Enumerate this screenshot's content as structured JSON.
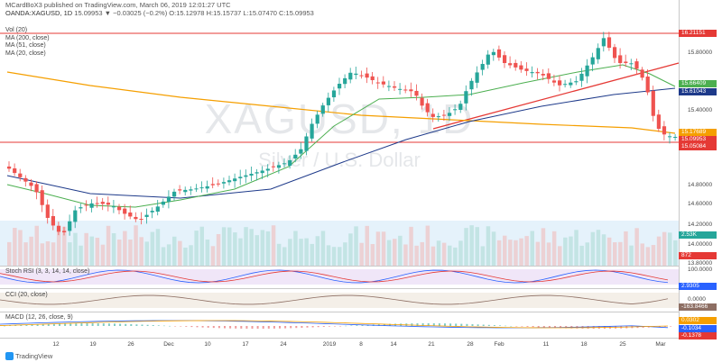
{
  "header": {
    "line1": "MCardBoX3 published on TradingView.com, March 06, 2019 12:01:27 UTC",
    "symbol": "OANDA:XAGUSD, 1D",
    "ohlc": "15.09953 ▼ −0.03025 (−0.2%) O:15.12978 H:15.15737 L:15.07470 C:15.09953"
  },
  "indicators": {
    "vol": "Vol (20)",
    "ma200": "MA (200, close)",
    "ma51": "MA (51, close)",
    "ma20": "MA (20, close)",
    "stoch": "Stoch RSI (3, 3, 14, 14, close)",
    "cci": "CCI (20, close)",
    "macd": "MACD (12, 26, close, 9)"
  },
  "watermark": {
    "symbol": "XAGUSD, 1D",
    "name": "Silver / U.S. Dollar"
  },
  "price_axis": [
    "15.80000",
    "15.40000",
    "14.80000",
    "14.60000",
    "14.20000",
    "14.00000",
    "13.80000"
  ],
  "stoch_axis": [
    "100.0000"
  ],
  "cci_axis": [
    "0.0000"
  ],
  "price_labels": [
    {
      "text": "16.21151",
      "color": "#e53935"
    },
    {
      "text": "15.66409",
      "color": "#4caf50"
    },
    {
      "text": "15.61043",
      "color": "#1e3a8a"
    },
    {
      "text": "15.17689",
      "color": "#f59f00"
    },
    {
      "text": "15.09953",
      "color": "#e53935"
    },
    {
      "text": "15.05084",
      "color": "#e53935"
    },
    {
      "text": "2.53K",
      "color": "#26a69a"
    },
    {
      "text": "872",
      "color": "#e53935"
    }
  ],
  "osc_labels": [
    {
      "text": "2.9305",
      "color": "#2962ff"
    },
    {
      "text": "-163.8466",
      "color": "#8d6e63"
    },
    {
      "text": "0.0302",
      "color": "#f59f00"
    },
    {
      "text": "-0.1034",
      "color": "#2962ff"
    },
    {
      "text": "-0.1378",
      "color": "#e53935"
    }
  ],
  "time_axis": [
    "12",
    "19",
    "26",
    "Dec",
    "10",
    "17",
    "24",
    "2019",
    "8",
    "14",
    "21",
    "28",
    "Feb",
    "11",
    "18",
    "25",
    "Mar"
  ],
  "footer": "TradingView",
  "colors": {
    "up": "#26a69a",
    "down": "#ef5350",
    "ma200": "#f59f00",
    "ma51": "#1e3a8a",
    "ma20": "#4caf50",
    "stoch_k": "#2962ff",
    "stoch_d": "#e53935",
    "cci": "#8d6e63",
    "macd": "#2962ff",
    "signal": "#f59f00"
  }
}
